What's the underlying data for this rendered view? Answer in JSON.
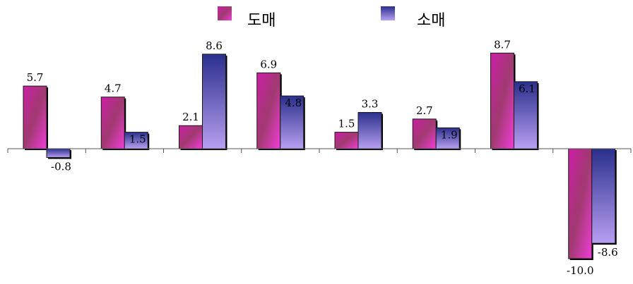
{
  "chart_data": {
    "type": "bar",
    "categories": [
      "",
      "",
      "",
      "",
      "",
      "",
      "",
      ""
    ],
    "series": [
      {
        "name": "도매",
        "values": [
          5.7,
          4.7,
          2.1,
          6.9,
          1.5,
          2.7,
          8.7,
          -10.0
        ],
        "labels": [
          "5.7",
          "4.7",
          "2.1",
          "6.9",
          "1.5",
          "2.7",
          "8.7",
          "-10.0"
        ]
      },
      {
        "name": "소매",
        "values": [
          -0.8,
          1.5,
          8.6,
          4.8,
          3.3,
          1.9,
          6.1,
          -8.6
        ],
        "labels": [
          "-0.8",
          "1.5",
          "8.6",
          "4.8",
          "3.3",
          "1.9",
          "6.1",
          "-8.6"
        ]
      }
    ],
    "ylim": [
      -10.5,
      9
    ],
    "legend_position": "top",
    "grid": false,
    "colors": {
      "wholesale_top": "#cc1ea6",
      "wholesale_mid": "#a03a70",
      "wholesale_bottom": "#f23cd8",
      "retail_top": "#2a2f8c",
      "retail_bottom": "#b79ff0",
      "axis": "#555555"
    }
  }
}
